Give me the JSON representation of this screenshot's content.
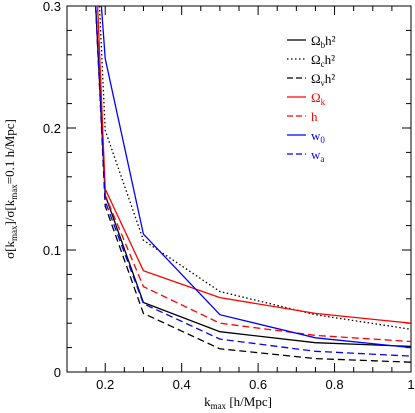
{
  "chart_data": {
    "type": "line",
    "title": "",
    "xlabel": "k_max [h/Mpc]",
    "ylabel": "σ[k_max]/σ[k_max=0.1 h/Mpc]",
    "xlim": [
      0.1,
      1.0
    ],
    "ylim": [
      0,
      0.3
    ],
    "x_ticks": [
      "0.2",
      "0.4",
      "0.6",
      "0.8",
      "1"
    ],
    "y_ticks": [
      "0",
      "0.1",
      "0.2",
      "0.3"
    ],
    "legend_position": "top-right",
    "grid": false,
    "series": [
      {
        "name": "Ωbh²",
        "color": "#000000",
        "dash": "solid",
        "x": [
          0.175,
          0.2,
          0.3,
          0.5,
          0.75,
          1.0
        ],
        "y": [
          0.3,
          0.145,
          0.057,
          0.033,
          0.024,
          0.021
        ]
      },
      {
        "name": "Ωch²",
        "color": "#000000",
        "dash": "dotted",
        "x": [
          0.185,
          0.2,
          0.3,
          0.5,
          0.75,
          1.0
        ],
        "y": [
          0.3,
          0.198,
          0.108,
          0.066,
          0.047,
          0.035
        ]
      },
      {
        "name": "Ωνh²",
        "color": "#000000",
        "dash": "dashed",
        "x": [
          0.175,
          0.2,
          0.3,
          0.5,
          0.75,
          1.0
        ],
        "y": [
          0.3,
          0.136,
          0.048,
          0.019,
          0.011,
          0.008
        ]
      },
      {
        "name": "Ωk",
        "color": "#ff0000",
        "dash": "solid",
        "x": [
          0.18,
          0.2,
          0.3,
          0.5,
          0.75,
          1.0
        ],
        "y": [
          0.3,
          0.15,
          0.083,
          0.061,
          0.048,
          0.04
        ]
      },
      {
        "name": "h",
        "color": "#ff0000",
        "dash": "dashed",
        "x": [
          0.175,
          0.2,
          0.3,
          0.5,
          0.75,
          1.0
        ],
        "y": [
          0.3,
          0.145,
          0.07,
          0.04,
          0.03,
          0.025
        ]
      },
      {
        "name": "w0",
        "color": "#0000ff",
        "dash": "solid",
        "x": [
          0.19,
          0.2,
          0.3,
          0.5,
          0.75,
          1.0
        ],
        "y": [
          0.3,
          0.257,
          0.113,
          0.047,
          0.028,
          0.02
        ]
      },
      {
        "name": "wa",
        "color": "#0000ff",
        "dash": "dashed",
        "x": [
          0.175,
          0.2,
          0.3,
          0.5,
          0.75,
          1.0
        ],
        "y": [
          0.3,
          0.14,
          0.056,
          0.027,
          0.017,
          0.013
        ]
      }
    ],
    "legend": [
      {
        "base": "Ω",
        "sub": "b",
        "post": "h²",
        "color": "#000000",
        "dash": "solid"
      },
      {
        "base": "Ω",
        "sub": "c",
        "post": "h²",
        "color": "#000000",
        "dash": "dotted"
      },
      {
        "base": "Ω",
        "sub": "ν",
        "post": "h²",
        "color": "#000000",
        "dash": "dashed"
      },
      {
        "base": "Ω",
        "sub": "k",
        "post": "",
        "color": "#ff0000",
        "dash": "solid"
      },
      {
        "base": "h",
        "sub": "",
        "post": "",
        "color": "#ff0000",
        "dash": "dashed"
      },
      {
        "base": "w",
        "sub": "0",
        "post": "",
        "color": "#0000ff",
        "dash": "solid"
      },
      {
        "base": "w",
        "sub": "a",
        "post": "",
        "color": "#0000ff",
        "dash": "dashed"
      }
    ]
  }
}
